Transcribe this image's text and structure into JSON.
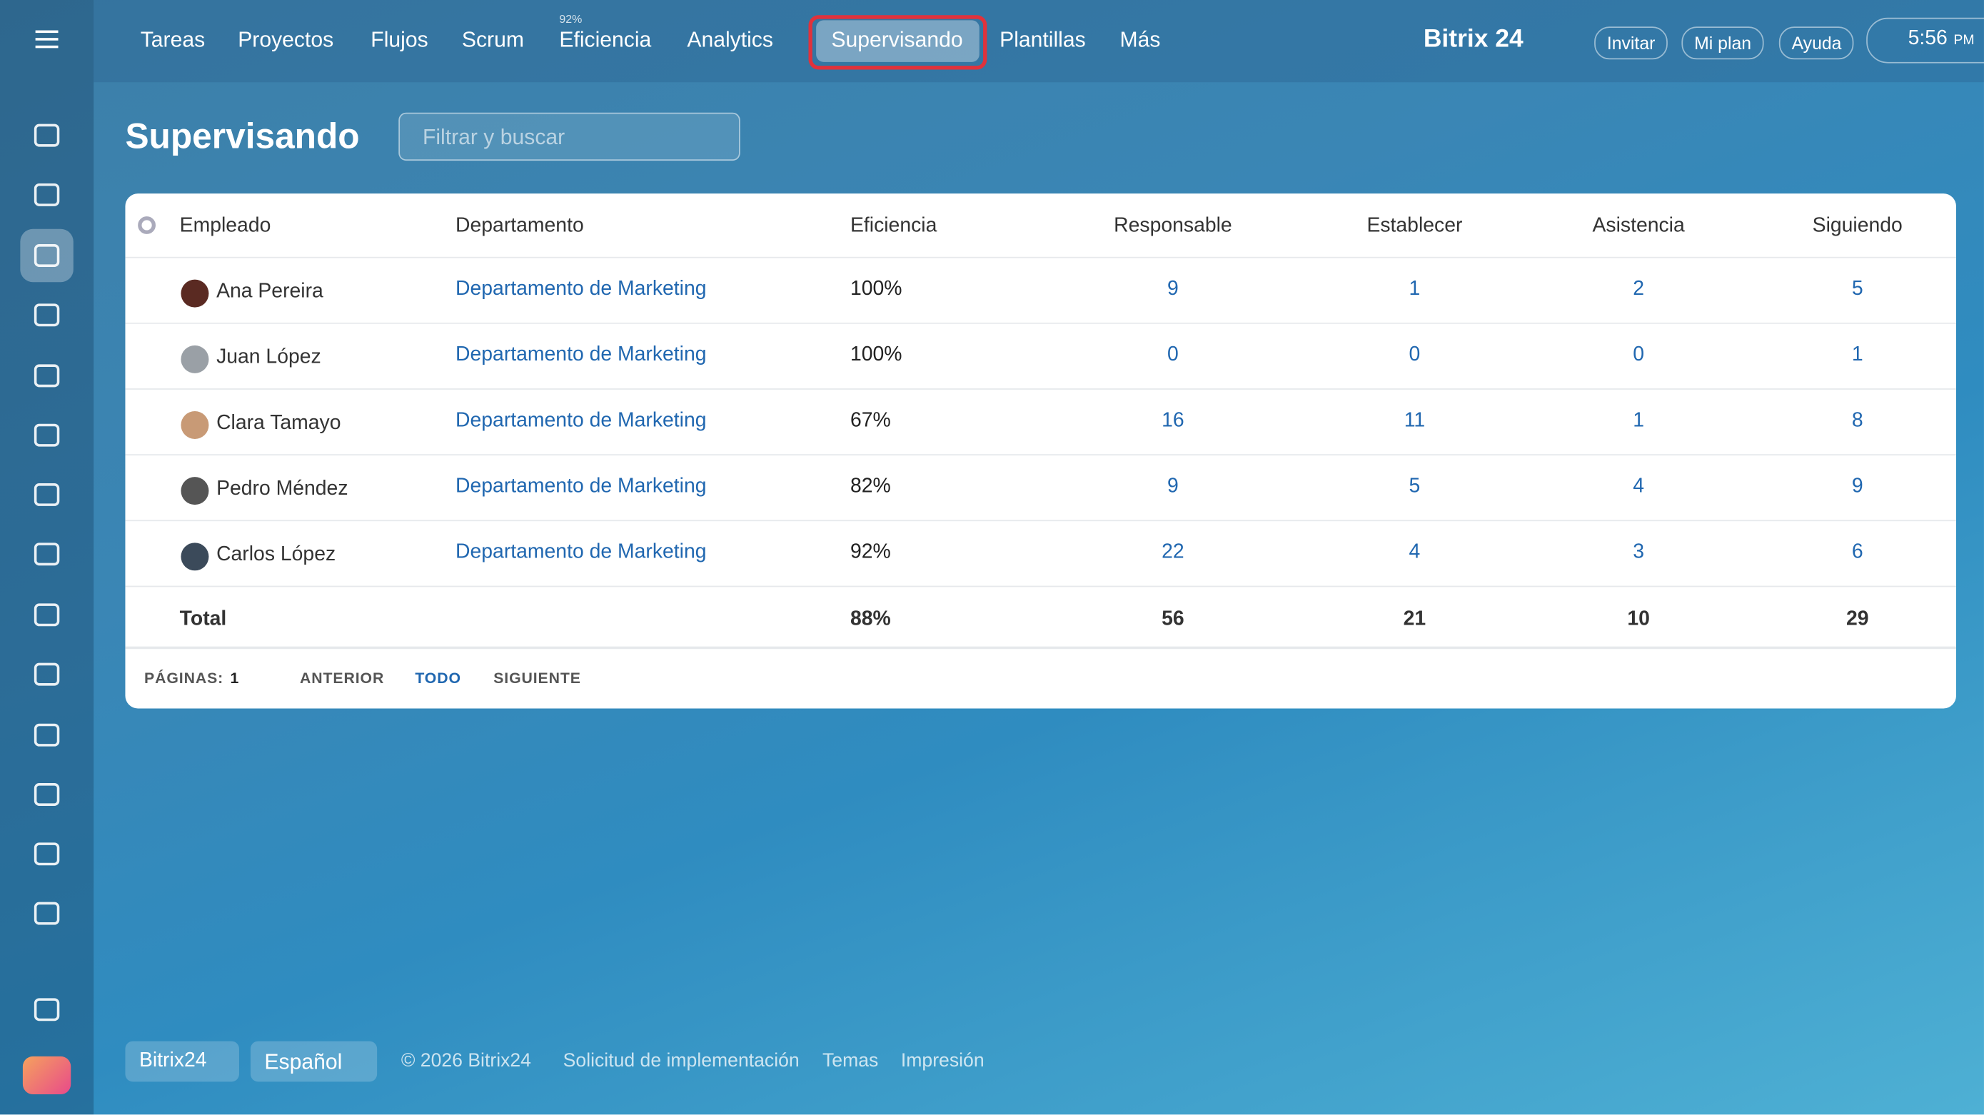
{
  "nav": {
    "items": [
      "Tareas",
      "Proyectos",
      "Flujos",
      "Scrum",
      "Eficiencia",
      "Analytics",
      "Supervisando",
      "Plantillas",
      "Más"
    ],
    "efficiency_badge": "92%",
    "brand": "Bitrix 24",
    "buttons": [
      "Invitar",
      "Mi plan",
      "Ayuda"
    ],
    "time": "5:56",
    "time_suffix": "PM"
  },
  "page": {
    "title": "Supervisando",
    "search_placeholder": "Filtrar y buscar"
  },
  "table": {
    "columns": [
      "Empleado",
      "Departamento",
      "Eficiencia",
      "Responsable",
      "Establecer",
      "Asistencia",
      "Siguiendo"
    ],
    "rows": [
      [
        "Ana Pereira",
        "Departamento de Marketing",
        "100%",
        9,
        1,
        2,
        5
      ],
      [
        "Juan López",
        "Departamento de Marketing",
        "100%",
        0,
        0,
        0,
        1
      ],
      [
        "Clara Tamayo",
        "Departamento de Marketing",
        "67%",
        16,
        11,
        1,
        8
      ],
      [
        "Pedro Méndez",
        "Departamento de Marketing",
        "82%",
        9,
        5,
        4,
        9
      ],
      [
        "Carlos López",
        "Departamento de Marketing",
        "92%",
        22,
        4,
        3,
        6
      ]
    ],
    "total": {
      "label": "Total",
      "values": [
        "88%",
        56,
        21,
        10,
        29
      ]
    }
  },
  "pagination": {
    "pages_label": "PÁGINAS:",
    "page": "1",
    "prev": "ANTERIOR",
    "all": "TODO",
    "next": "SIGUIENTE"
  },
  "footer": {
    "brand": "Bitrix24",
    "language": "Español",
    "copyright": "© 2026 Bitrix24",
    "links": [
      "Solicitud de implementación",
      "Temas",
      "Impresión"
    ]
  }
}
